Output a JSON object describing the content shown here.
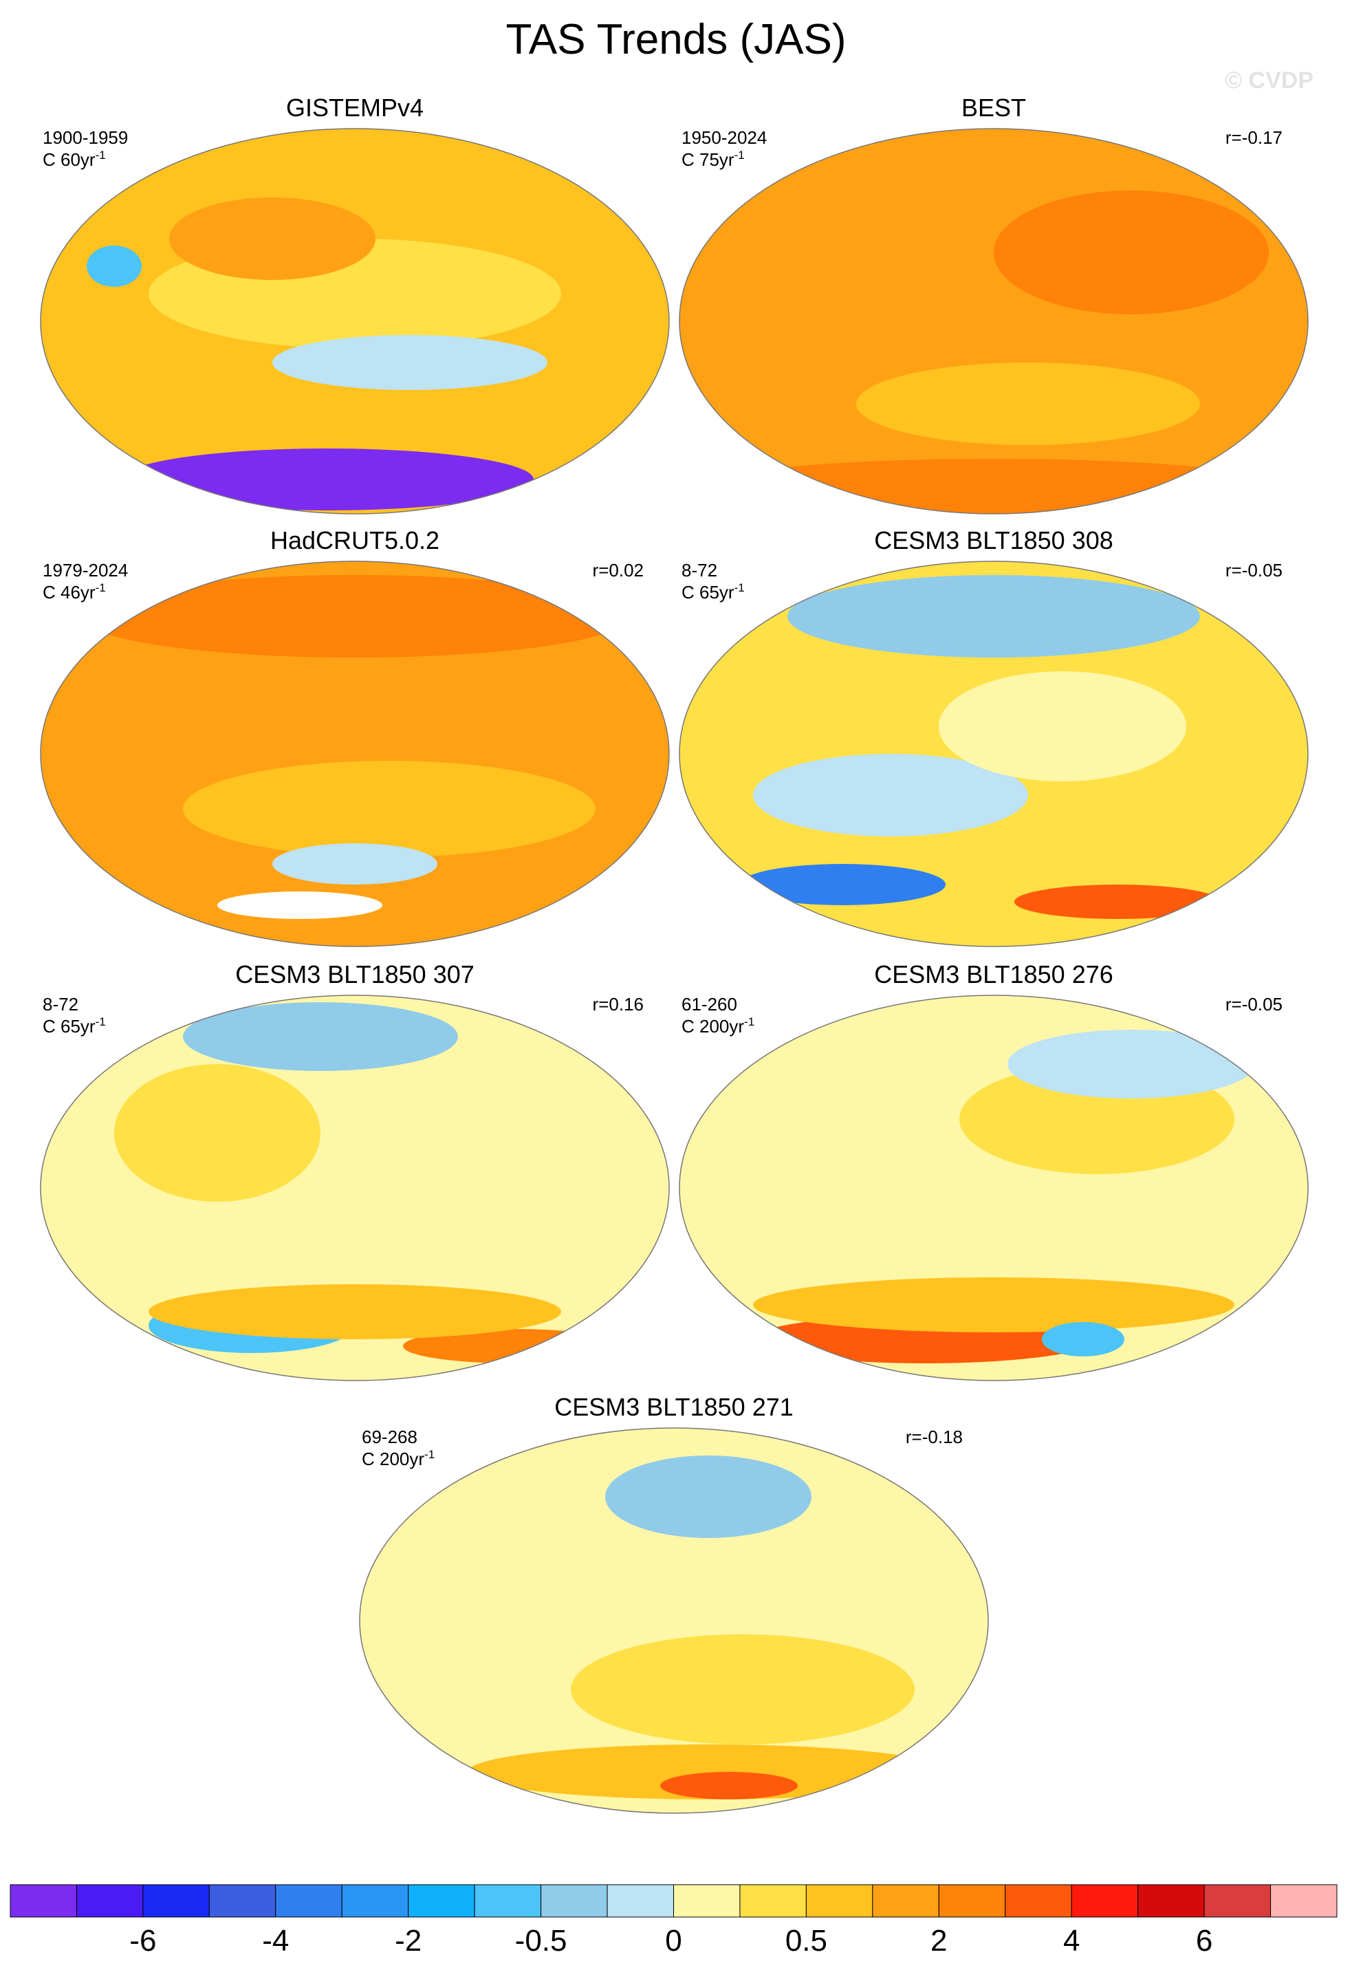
{
  "title": "TAS Trends (JAS)",
  "watermark": "© CVDP",
  "panels": [
    {
      "title": "GISTEMPv4",
      "period": "1900-1959",
      "units": "C 60yr",
      "units_exp": "-1"
    },
    {
      "title": "BEST",
      "period": "1950-2024",
      "units": "C 75yr",
      "units_exp": "-1",
      "r": "r=-0.17"
    },
    {
      "title": "HadCRUT5.0.2",
      "period": "1979-2024",
      "units": "C 46yr",
      "units_exp": "-1",
      "r": "r=0.02"
    },
    {
      "title": "CESM3 BLT1850 308",
      "period": "8-72",
      "units": "C 65yr",
      "units_exp": "-1",
      "r": "r=-0.05"
    },
    {
      "title": "CESM3 BLT1850 307",
      "period": "8-72",
      "units": "C 65yr",
      "units_exp": "-1",
      "r": "r=0.16"
    },
    {
      "title": "CESM3 BLT1850 276",
      "period": "61-260",
      "units": "C 200yr",
      "units_exp": "-1",
      "r": "r=-0.05"
    },
    {
      "title": "CESM3 BLT1850 271",
      "period": "69-268",
      "units": "C 200yr",
      "units_exp": "-1",
      "r": "r=-0.18"
    }
  ],
  "colorbar": {
    "colors": [
      "#7b2cf0",
      "#4a1cf5",
      "#1a2af5",
      "#3c5ee0",
      "#2f7ff0",
      "#2b95f5",
      "#10b0fa",
      "#4cc4f8",
      "#90cbea",
      "#bde3f5",
      "#fff7a8",
      "#ffe046",
      "#ffc21f",
      "#ffa114",
      "#ff8209",
      "#ff5a0b",
      "#ff1a0d",
      "#d60a0a",
      "#d93d3d",
      "#ffb3b3"
    ],
    "labels": [
      "-6",
      "-4",
      "-2",
      "-0.5",
      "0",
      "0.5",
      "2",
      "4",
      "6"
    ]
  }
}
